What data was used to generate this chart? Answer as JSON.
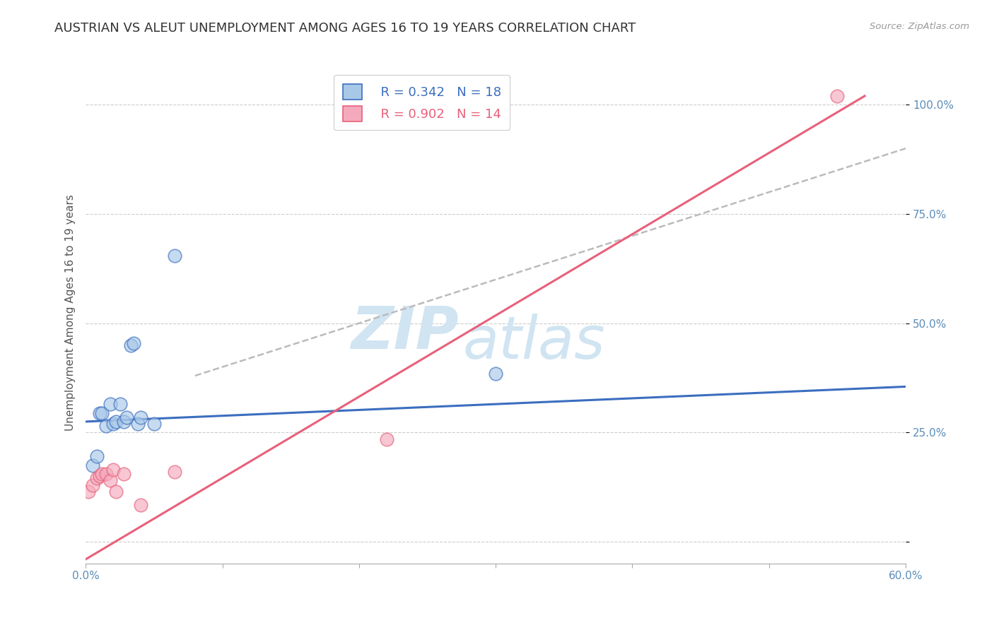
{
  "title": "AUSTRIAN VS ALEUT UNEMPLOYMENT AMONG AGES 16 TO 19 YEARS CORRELATION CHART",
  "source": "Source: ZipAtlas.com",
  "ylabel": "Unemployment Among Ages 16 to 19 years",
  "xlim": [
    0.0,
    0.6
  ],
  "ylim": [
    -0.05,
    1.1
  ],
  "xticks": [
    0.0,
    0.1,
    0.2,
    0.3,
    0.4,
    0.5,
    0.6
  ],
  "xticklabels": [
    "0.0%",
    "",
    "",
    "",
    "",
    "",
    "60.0%"
  ],
  "yticks": [
    0.0,
    0.25,
    0.5,
    0.75,
    1.0
  ],
  "yticklabels": [
    "",
    "25.0%",
    "50.0%",
    "75.0%",
    "100.0%"
  ],
  "legend_blue_r": "R = 0.342",
  "legend_blue_n": "N = 18",
  "legend_pink_r": "R = 0.902",
  "legend_pink_n": "N = 14",
  "austrians_x": [
    0.005,
    0.008,
    0.01,
    0.012,
    0.015,
    0.018,
    0.02,
    0.022,
    0.025,
    0.028,
    0.03,
    0.033,
    0.035,
    0.038,
    0.04,
    0.05,
    0.065,
    0.3
  ],
  "austrians_y": [
    0.175,
    0.195,
    0.295,
    0.295,
    0.265,
    0.315,
    0.27,
    0.275,
    0.315,
    0.275,
    0.285,
    0.45,
    0.455,
    0.27,
    0.285,
    0.27,
    0.655,
    0.385
  ],
  "aleuts_x": [
    0.002,
    0.005,
    0.008,
    0.01,
    0.012,
    0.015,
    0.018,
    0.02,
    0.022,
    0.028,
    0.04,
    0.065,
    0.22,
    0.55
  ],
  "aleuts_y": [
    0.115,
    0.13,
    0.145,
    0.15,
    0.155,
    0.155,
    0.14,
    0.165,
    0.115,
    0.155,
    0.085,
    0.16,
    0.235,
    1.02
  ],
  "blue_line_x": [
    0.0,
    0.6
  ],
  "blue_line_y": [
    0.275,
    0.355
  ],
  "pink_line_x": [
    0.0,
    0.57
  ],
  "pink_line_y": [
    -0.04,
    1.02
  ],
  "dash_line_x": [
    0.08,
    0.6
  ],
  "dash_line_y": [
    0.38,
    0.9
  ],
  "blue_color": "#A8C8E8",
  "pink_color": "#F4AABC",
  "blue_line_color": "#3B6EBF",
  "pink_line_color": "#E8607A",
  "dash_line_color": "#BBBBBB",
  "watermark_color": "#D0E4F2",
  "title_fontsize": 13,
  "axis_label_fontsize": 11,
  "tick_fontsize": 11,
  "legend_fontsize": 13,
  "background_color": "#FFFFFF"
}
